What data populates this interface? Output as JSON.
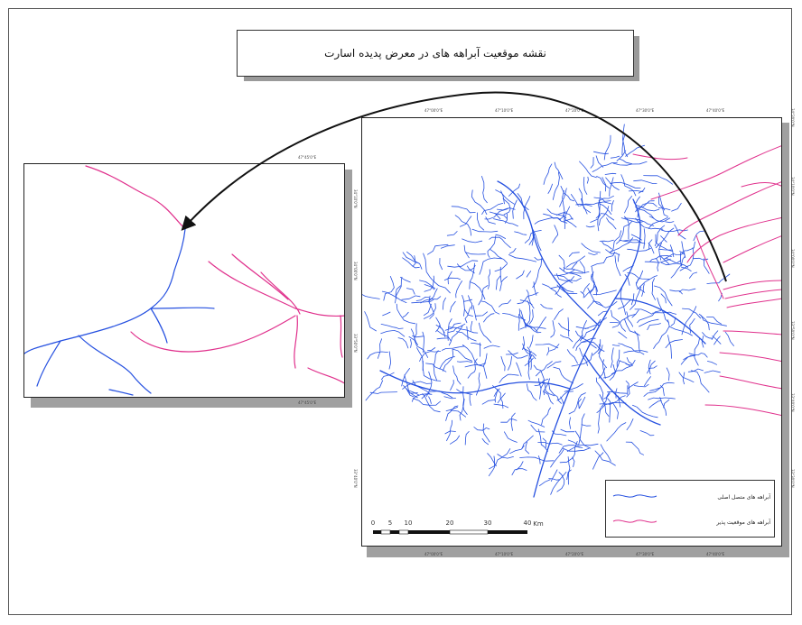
{
  "map": {
    "title": "نقشه موقعیت آبراهه های در معرض پدیده اسارت",
    "colors": {
      "stream_main": "#2550e0",
      "stream_captured": "#e0308c",
      "frame": "#222222",
      "shadow": "#a0a0a0"
    }
  },
  "legend": {
    "items": [
      {
        "label": "آبراهه های متصل اصلی",
        "color": "#2550e0"
      },
      {
        "label": "آبراهه های موقعیت پذیر",
        "color": "#e0308c"
      }
    ]
  },
  "scalebar": {
    "ticks": [
      "0",
      "5",
      "10",
      "20",
      "30",
      "40"
    ],
    "unit": "Km"
  },
  "graticule": {
    "top_labels": [
      "47°00'0\"E",
      "47°10'0\"E",
      "47°20'0\"E",
      "47°30'0\"E",
      "47°40'0\"E"
    ],
    "bottom_labels": [
      "47°00'0\"E",
      "47°10'0\"E",
      "47°20'0\"E",
      "47°30'0\"E",
      "47°40'0\"E"
    ],
    "left_labels": [
      "34°10'0\"N",
      "34°00'0\"N",
      "33°50'0\"N",
      "33°40'0\"N"
    ],
    "right_labels": [
      "34°20'0\"N",
      "34°10'0\"N",
      "34°00'0\"N",
      "33°50'0\"N",
      "33°40'0\"N",
      "33°30'0\"N"
    ],
    "inset_top_label": "47°45'0\"E",
    "inset_bottom_label": "47°45'0\"E"
  }
}
